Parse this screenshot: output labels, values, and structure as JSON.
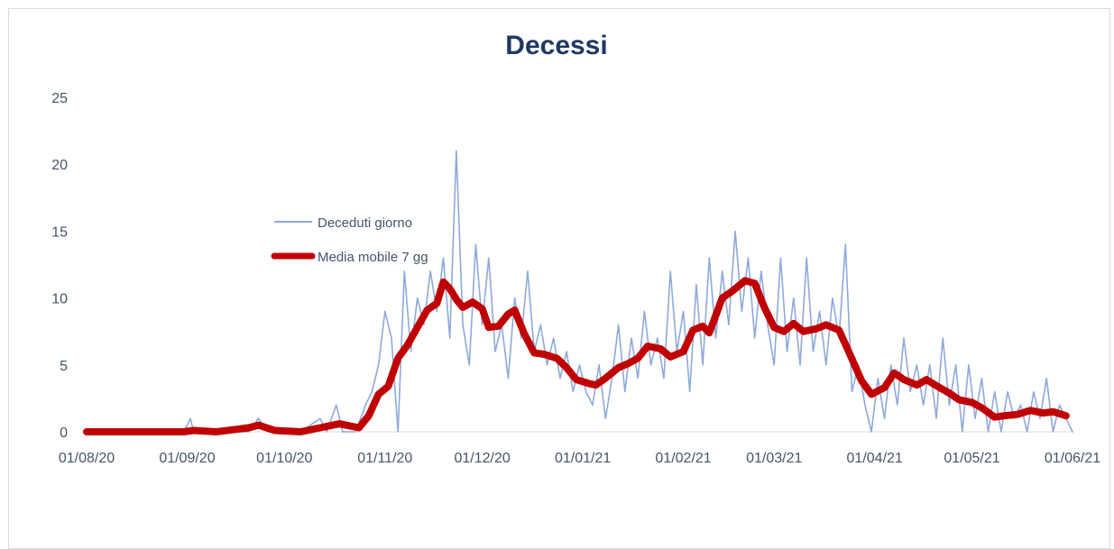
{
  "chart_data": {
    "type": "line",
    "title": "Decessi",
    "xlabel": "",
    "ylabel": "",
    "ylim": [
      0,
      25
    ],
    "yticks": [
      0,
      5,
      10,
      15,
      20,
      25
    ],
    "xlim": [
      "2020-08-01",
      "2021-06-01"
    ],
    "x_tick_labels": [
      "01/08/20",
      "01/09/20",
      "01/10/20",
      "01/11/20",
      "01/12/20",
      "01/01/21",
      "01/02/21",
      "01/03/21",
      "01/04/21",
      "01/05/21",
      "01/06/21"
    ],
    "grid": false,
    "legend_position": "left-middle",
    "series": [
      {
        "name": "Deceduti giorno",
        "color": "#8ea9db",
        "points": [
          [
            "2020-08-01",
            0
          ],
          [
            "2020-08-15",
            0
          ],
          [
            "2020-08-31",
            0
          ],
          [
            "2020-09-02",
            1
          ],
          [
            "2020-09-03",
            0
          ],
          [
            "2020-09-20",
            0
          ],
          [
            "2020-09-23",
            1
          ],
          [
            "2020-09-26",
            0
          ],
          [
            "2020-10-06",
            0
          ],
          [
            "2020-10-12",
            1
          ],
          [
            "2020-10-14",
            0
          ],
          [
            "2020-10-17",
            2
          ],
          [
            "2020-10-19",
            0
          ],
          [
            "2020-10-23",
            0
          ],
          [
            "2020-10-26",
            2
          ],
          [
            "2020-10-28",
            3
          ],
          [
            "2020-10-30",
            5
          ],
          [
            "2020-11-01",
            9
          ],
          [
            "2020-11-03",
            7
          ],
          [
            "2020-11-05",
            0
          ],
          [
            "2020-11-07",
            12
          ],
          [
            "2020-11-09",
            6
          ],
          [
            "2020-11-11",
            10
          ],
          [
            "2020-11-13",
            8
          ],
          [
            "2020-11-15",
            12
          ],
          [
            "2020-11-17",
            9
          ],
          [
            "2020-11-19",
            13
          ],
          [
            "2020-11-21",
            7
          ],
          [
            "2020-11-23",
            21
          ],
          [
            "2020-11-25",
            8
          ],
          [
            "2020-11-27",
            5
          ],
          [
            "2020-11-29",
            14
          ],
          [
            "2020-12-01",
            8
          ],
          [
            "2020-12-03",
            13
          ],
          [
            "2020-12-05",
            6
          ],
          [
            "2020-12-07",
            8
          ],
          [
            "2020-12-09",
            4
          ],
          [
            "2020-12-11",
            10
          ],
          [
            "2020-12-13",
            7
          ],
          [
            "2020-12-15",
            12
          ],
          [
            "2020-12-17",
            6
          ],
          [
            "2020-12-19",
            8
          ],
          [
            "2020-12-21",
            5
          ],
          [
            "2020-12-23",
            7
          ],
          [
            "2020-12-25",
            4
          ],
          [
            "2020-12-27",
            6
          ],
          [
            "2020-12-29",
            3
          ],
          [
            "2020-12-31",
            5
          ],
          [
            "2021-01-02",
            3
          ],
          [
            "2021-01-04",
            2
          ],
          [
            "2021-01-06",
            5
          ],
          [
            "2021-01-08",
            1
          ],
          [
            "2021-01-10",
            4
          ],
          [
            "2021-01-12",
            8
          ],
          [
            "2021-01-14",
            3
          ],
          [
            "2021-01-16",
            7
          ],
          [
            "2021-01-18",
            4
          ],
          [
            "2021-01-20",
            9
          ],
          [
            "2021-01-22",
            5
          ],
          [
            "2021-01-24",
            7
          ],
          [
            "2021-01-26",
            4
          ],
          [
            "2021-01-28",
            12
          ],
          [
            "2021-01-30",
            6
          ],
          [
            "2021-02-01",
            9
          ],
          [
            "2021-02-03",
            3
          ],
          [
            "2021-02-05",
            11
          ],
          [
            "2021-02-07",
            5
          ],
          [
            "2021-02-09",
            13
          ],
          [
            "2021-02-11",
            7
          ],
          [
            "2021-02-13",
            12
          ],
          [
            "2021-02-15",
            8
          ],
          [
            "2021-02-17",
            15
          ],
          [
            "2021-02-19",
            9
          ],
          [
            "2021-02-21",
            13
          ],
          [
            "2021-02-23",
            7
          ],
          [
            "2021-02-25",
            12
          ],
          [
            "2021-02-27",
            8
          ],
          [
            "2021-03-01",
            5
          ],
          [
            "2021-03-03",
            13
          ],
          [
            "2021-03-05",
            6
          ],
          [
            "2021-03-07",
            10
          ],
          [
            "2021-03-09",
            5
          ],
          [
            "2021-03-11",
            13
          ],
          [
            "2021-03-13",
            6
          ],
          [
            "2021-03-15",
            9
          ],
          [
            "2021-03-17",
            5
          ],
          [
            "2021-03-19",
            10
          ],
          [
            "2021-03-21",
            7
          ],
          [
            "2021-03-23",
            14
          ],
          [
            "2021-03-25",
            3
          ],
          [
            "2021-03-27",
            5
          ],
          [
            "2021-03-29",
            2
          ],
          [
            "2021-03-31",
            0
          ],
          [
            "2021-04-02",
            4
          ],
          [
            "2021-04-04",
            1
          ],
          [
            "2021-04-06",
            5
          ],
          [
            "2021-04-08",
            2
          ],
          [
            "2021-04-10",
            7
          ],
          [
            "2021-04-12",
            3
          ],
          [
            "2021-04-14",
            5
          ],
          [
            "2021-04-16",
            2
          ],
          [
            "2021-04-18",
            5
          ],
          [
            "2021-04-20",
            1
          ],
          [
            "2021-04-22",
            7
          ],
          [
            "2021-04-24",
            2
          ],
          [
            "2021-04-26",
            5
          ],
          [
            "2021-04-28",
            0
          ],
          [
            "2021-04-30",
            5
          ],
          [
            "2021-05-02",
            1
          ],
          [
            "2021-05-04",
            4
          ],
          [
            "2021-05-06",
            0
          ],
          [
            "2021-05-08",
            3
          ],
          [
            "2021-05-10",
            0
          ],
          [
            "2021-05-12",
            3
          ],
          [
            "2021-05-14",
            1
          ],
          [
            "2021-05-16",
            2
          ],
          [
            "2021-05-18",
            0
          ],
          [
            "2021-05-20",
            3
          ],
          [
            "2021-05-22",
            1
          ],
          [
            "2021-05-24",
            4
          ],
          [
            "2021-05-26",
            0
          ],
          [
            "2021-05-28",
            2
          ],
          [
            "2021-05-30",
            1
          ],
          [
            "2021-06-01",
            0
          ]
        ]
      },
      {
        "name": "Media mobile 7 gg",
        "color": "#c00000",
        "points": [
          [
            "2020-08-01",
            0
          ],
          [
            "2020-08-31",
            0
          ],
          [
            "2020-09-03",
            0.1
          ],
          [
            "2020-09-10",
            0
          ],
          [
            "2020-09-20",
            0.3
          ],
          [
            "2020-09-23",
            0.5
          ],
          [
            "2020-09-28",
            0.1
          ],
          [
            "2020-10-06",
            0
          ],
          [
            "2020-10-12",
            0.3
          ],
          [
            "2020-10-18",
            0.6
          ],
          [
            "2020-10-24",
            0.3
          ],
          [
            "2020-10-27",
            1.2
          ],
          [
            "2020-10-30",
            2.8
          ],
          [
            "2020-11-02",
            3.4
          ],
          [
            "2020-11-05",
            5.5
          ],
          [
            "2020-11-08",
            6.5
          ],
          [
            "2020-11-11",
            7.8
          ],
          [
            "2020-11-14",
            9.1
          ],
          [
            "2020-11-17",
            9.6
          ],
          [
            "2020-11-19",
            11.2
          ],
          [
            "2020-11-21",
            10.7
          ],
          [
            "2020-11-23",
            9.9
          ],
          [
            "2020-11-25",
            9.3
          ],
          [
            "2020-11-28",
            9.7
          ],
          [
            "2020-12-01",
            9.2
          ],
          [
            "2020-12-03",
            7.8
          ],
          [
            "2020-12-06",
            7.9
          ],
          [
            "2020-12-09",
            8.8
          ],
          [
            "2020-12-11",
            9.1
          ],
          [
            "2020-12-14",
            7.3
          ],
          [
            "2020-12-17",
            5.9
          ],
          [
            "2020-12-20",
            5.8
          ],
          [
            "2020-12-24",
            5.5
          ],
          [
            "2020-12-27",
            4.8
          ],
          [
            "2020-12-30",
            3.9
          ],
          [
            "2021-01-03",
            3.6
          ],
          [
            "2021-01-05",
            3.5
          ],
          [
            "2021-01-08",
            4.0
          ],
          [
            "2021-01-12",
            4.8
          ],
          [
            "2021-01-15",
            5.1
          ],
          [
            "2021-01-18",
            5.5
          ],
          [
            "2021-01-21",
            6.4
          ],
          [
            "2021-01-25",
            6.2
          ],
          [
            "2021-01-28",
            5.6
          ],
          [
            "2021-02-01",
            6.0
          ],
          [
            "2021-02-04",
            7.6
          ],
          [
            "2021-02-07",
            7.9
          ],
          [
            "2021-02-09",
            7.4
          ],
          [
            "2021-02-13",
            10.0
          ],
          [
            "2021-02-16",
            10.5
          ],
          [
            "2021-02-20",
            11.3
          ],
          [
            "2021-02-23",
            11.1
          ],
          [
            "2021-02-26",
            9.3
          ],
          [
            "2021-03-01",
            7.8
          ],
          [
            "2021-03-04",
            7.5
          ],
          [
            "2021-03-07",
            8.1
          ],
          [
            "2021-03-10",
            7.5
          ],
          [
            "2021-03-14",
            7.7
          ],
          [
            "2021-03-17",
            8.0
          ],
          [
            "2021-03-21",
            7.6
          ],
          [
            "2021-03-24",
            6.0
          ],
          [
            "2021-03-28",
            3.8
          ],
          [
            "2021-03-31",
            2.8
          ],
          [
            "2021-04-04",
            3.3
          ],
          [
            "2021-04-07",
            4.4
          ],
          [
            "2021-04-10",
            3.9
          ],
          [
            "2021-04-14",
            3.5
          ],
          [
            "2021-04-17",
            3.9
          ],
          [
            "2021-04-21",
            3.3
          ],
          [
            "2021-04-24",
            2.9
          ],
          [
            "2021-04-27",
            2.4
          ],
          [
            "2021-05-01",
            2.2
          ],
          [
            "2021-05-04",
            1.8
          ],
          [
            "2021-05-08",
            1.1
          ],
          [
            "2021-05-11",
            1.2
          ],
          [
            "2021-05-15",
            1.3
          ],
          [
            "2021-05-19",
            1.6
          ],
          [
            "2021-05-23",
            1.4
          ],
          [
            "2021-05-26",
            1.5
          ],
          [
            "2021-05-30",
            1.2
          ]
        ]
      }
    ]
  }
}
